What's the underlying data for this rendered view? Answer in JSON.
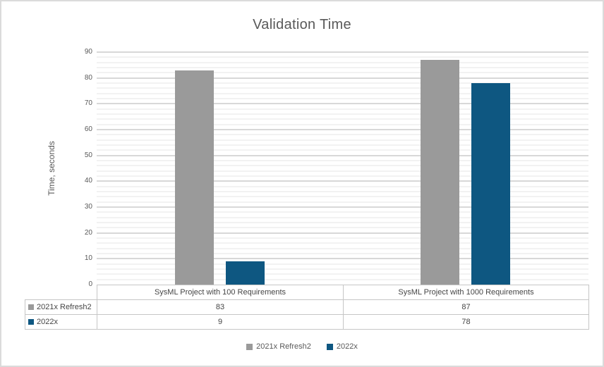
{
  "chart_data": {
    "type": "bar",
    "title": "Validation Time",
    "categories": [
      "SysML Project with 100 Requirements",
      "SysML Project with 1000 Requirements"
    ],
    "series": [
      {
        "name": "2021x Refresh2",
        "color": "#9A9A9A",
        "values": [
          83,
          87
        ]
      },
      {
        "name": "2022x",
        "color": "#0E5781",
        "values": [
          9,
          78
        ]
      }
    ],
    "xlabel": "",
    "ylabel": "Time, seconds",
    "ylim": [
      0,
      90
    ],
    "y_major_step": 10,
    "y_minor_step": 2,
    "grid": true,
    "legend_position": "bottom",
    "show_data_table": true
  },
  "colors": {
    "major_gridline": "#D8D8D8",
    "minor_gridline": "#F2F2F2",
    "axis_text": "#595959",
    "title_text": "#595959",
    "table_border": "#C6C6C6",
    "table_text": "#454545",
    "frame_border": "#DBDBDB"
  }
}
